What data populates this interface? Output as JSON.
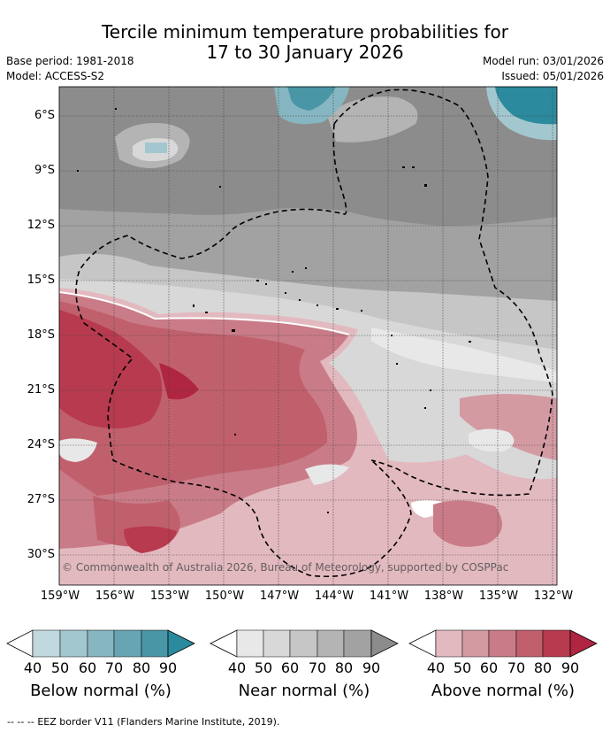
{
  "header": {
    "title_line1": "Tercile minimum temperature probabilities for",
    "title_line2": "17 to 30 January 2026",
    "base_period": "Base period: 1981-2018",
    "model": "Model: ACCESS-S2",
    "model_run": "Model run: 03/01/2026",
    "issued": "Issued: 05/01/2026"
  },
  "map": {
    "lat_labels": [
      "6°S",
      "9°S",
      "12°S",
      "15°S",
      "18°S",
      "21°S",
      "24°S",
      "27°S",
      "30°S"
    ],
    "lon_labels": [
      "159°W",
      "156°W",
      "153°W",
      "150°W",
      "147°W",
      "144°W",
      "141°W",
      "138°W",
      "135°W",
      "132°W"
    ],
    "copyright": "© Commonwealth of Australia 2026, Bureau of Meteorology, supported by COSPPac"
  },
  "legends": [
    {
      "title": "Below normal (%)",
      "ticks": [
        "40",
        "50",
        "60",
        "70",
        "80",
        "90"
      ],
      "colors": [
        "#c0d8de",
        "#a3c7cf",
        "#86b6c1",
        "#67a5b3",
        "#4896a6",
        "#2b8a9d"
      ]
    },
    {
      "title": "Near normal (%)",
      "ticks": [
        "40",
        "50",
        "60",
        "70",
        "80",
        "90"
      ],
      "colors": [
        "#e8e8e8",
        "#d8d8d8",
        "#c6c6c6",
        "#b4b4b4",
        "#a2a2a2",
        "#8c8c8c"
      ]
    },
    {
      "title": "Above normal (%)",
      "ticks": [
        "40",
        "50",
        "60",
        "70",
        "80",
        "90"
      ],
      "colors": [
        "#e3b9c0",
        "#d49aa2",
        "#c97c87",
        "#c1606d",
        "#b73a4e",
        "#b02541"
      ]
    }
  ],
  "footer": {
    "dash_sample": "-- -- --",
    "eez_note": "EEZ border V11 (Flanders Marine Institute, 2019)."
  }
}
